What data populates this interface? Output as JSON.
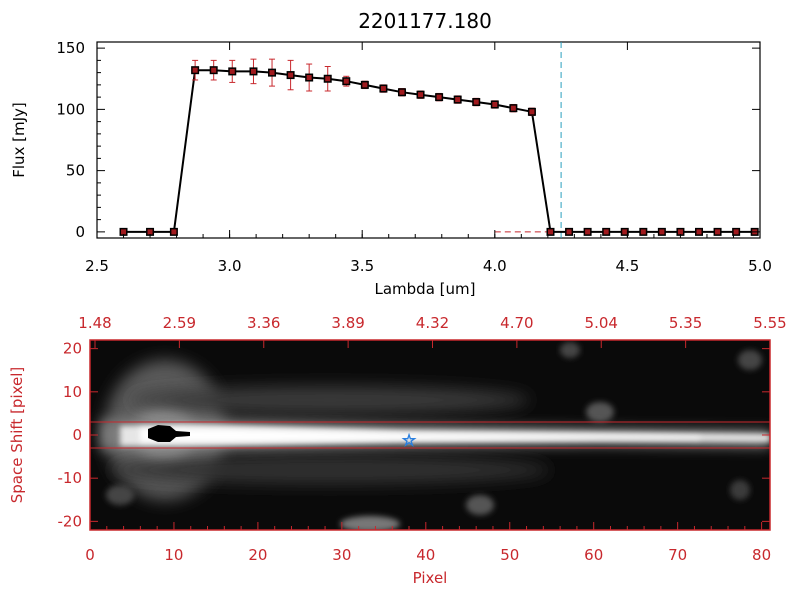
{
  "chart_data": [
    {
      "type": "line",
      "title": "2201177.180",
      "xlabel": "Lambda [um]",
      "ylabel": "Flux [mJy]",
      "xlim": [
        2.5,
        5.0
      ],
      "ylim": [
        -5,
        155
      ],
      "x_ticks": [
        "2.5",
        "3.0",
        "3.5",
        "4.0",
        "4.5",
        "5.0"
      ],
      "y_ticks": [
        "0",
        "50",
        "100",
        "150"
      ],
      "series": [
        {
          "x": [
            2.6,
            2.7,
            2.79,
            2.87,
            2.94,
            3.01,
            3.09,
            3.16,
            3.23,
            3.3,
            3.37,
            3.44,
            3.51,
            3.58,
            3.65,
            3.72,
            3.79,
            3.86,
            3.93,
            4.0,
            4.07,
            4.14,
            4.21,
            4.28,
            4.35,
            4.42,
            4.49,
            4.56,
            4.63,
            4.7,
            4.77,
            4.84,
            4.91,
            4.98
          ],
          "y": [
            0,
            0,
            0,
            132,
            132,
            131,
            131,
            130,
            128,
            126,
            125,
            123,
            120,
            117,
            114,
            112,
            110,
            108,
            106,
            104,
            101,
            98,
            0,
            0,
            0,
            0,
            0,
            0,
            0,
            0,
            0,
            0,
            0,
            0
          ],
          "yerr": [
            0,
            0,
            0,
            8,
            8,
            9,
            10,
            11,
            12,
            11,
            10,
            4,
            3,
            3,
            3,
            3,
            3,
            3,
            3,
            3,
            3,
            3,
            0,
            0,
            0,
            0,
            0,
            0,
            0,
            0,
            0,
            0,
            0,
            0
          ]
        }
      ],
      "vline_x": 4.25,
      "hline_y": 0
    },
    {
      "type": "heatmap",
      "xlabel": "Pixel",
      "ylabel": "Space Shift [pixel]",
      "xlim": [
        0,
        81
      ],
      "ylim": [
        -22,
        22
      ],
      "x_ticks": [
        "0",
        "10",
        "20",
        "30",
        "40",
        "50",
        "60",
        "70",
        "80"
      ],
      "y_ticks": [
        "20",
        "10",
        "0",
        "-10",
        "-20"
      ],
      "top_ticks": [
        "1.48",
        "2.59",
        "3.36",
        "3.89",
        "4.32",
        "4.70",
        "5.04",
        "5.35",
        "5.55"
      ],
      "trace_bounds": [
        3,
        -3
      ],
      "star_marker": {
        "x": 38,
        "y": -1
      }
    }
  ]
}
